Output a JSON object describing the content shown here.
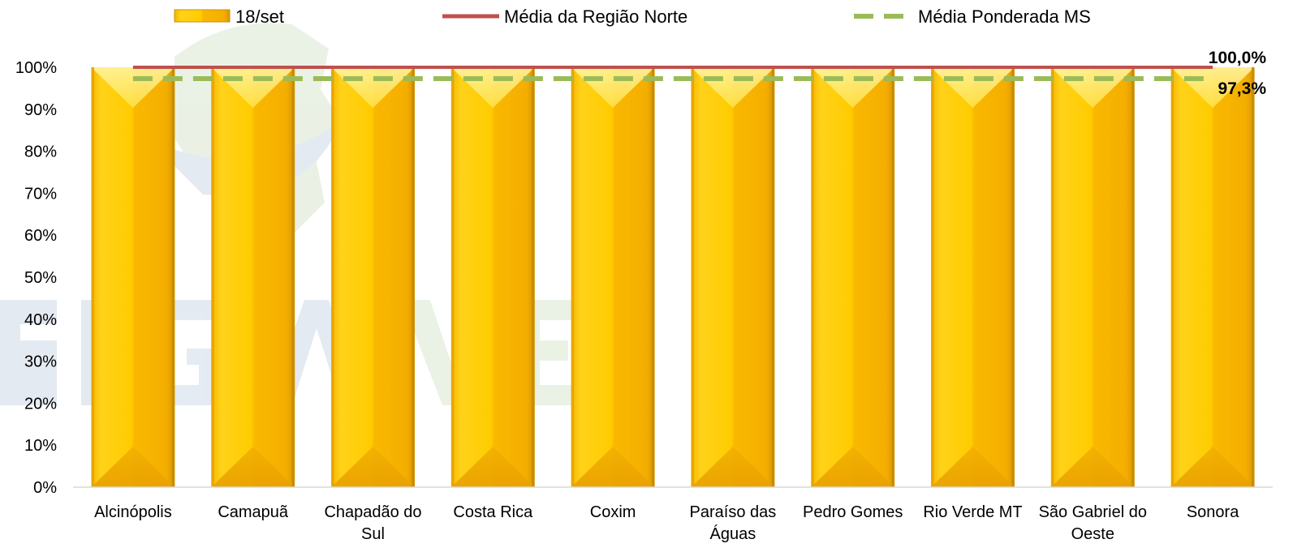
{
  "chart_data": {
    "type": "bar",
    "categories": [
      [
        "Alcinópolis"
      ],
      [
        "Camapuã"
      ],
      [
        "Chapadão do",
        "Sul"
      ],
      [
        "Costa Rica"
      ],
      [
        "Coxim"
      ],
      [
        "Paraíso das",
        "Águas"
      ],
      [
        "Pedro Gomes"
      ],
      [
        "Rio Verde MT"
      ],
      [
        "São Gabriel do",
        "Oeste"
      ],
      [
        "Sonora"
      ]
    ],
    "series": [
      {
        "name": "18/set",
        "values": [
          100,
          100,
          100,
          100,
          100,
          100,
          100,
          100,
          100,
          100
        ],
        "color": "#FFC000"
      }
    ],
    "reference_lines": [
      {
        "name": "Média da Região Norte",
        "value": 100.0,
        "label": "100,0%",
        "color": "#C0504D",
        "style": "solid"
      },
      {
        "name": "Média Ponderada MS",
        "value": 97.3,
        "label": "97,3%",
        "color": "#9BBB59",
        "style": "dashed"
      }
    ],
    "ylim": [
      0,
      100
    ],
    "yticks": [
      "0%",
      "10%",
      "20%",
      "30%",
      "40%",
      "50%",
      "60%",
      "70%",
      "80%",
      "90%",
      "100%"
    ],
    "legend_position": "top",
    "grid": false
  }
}
